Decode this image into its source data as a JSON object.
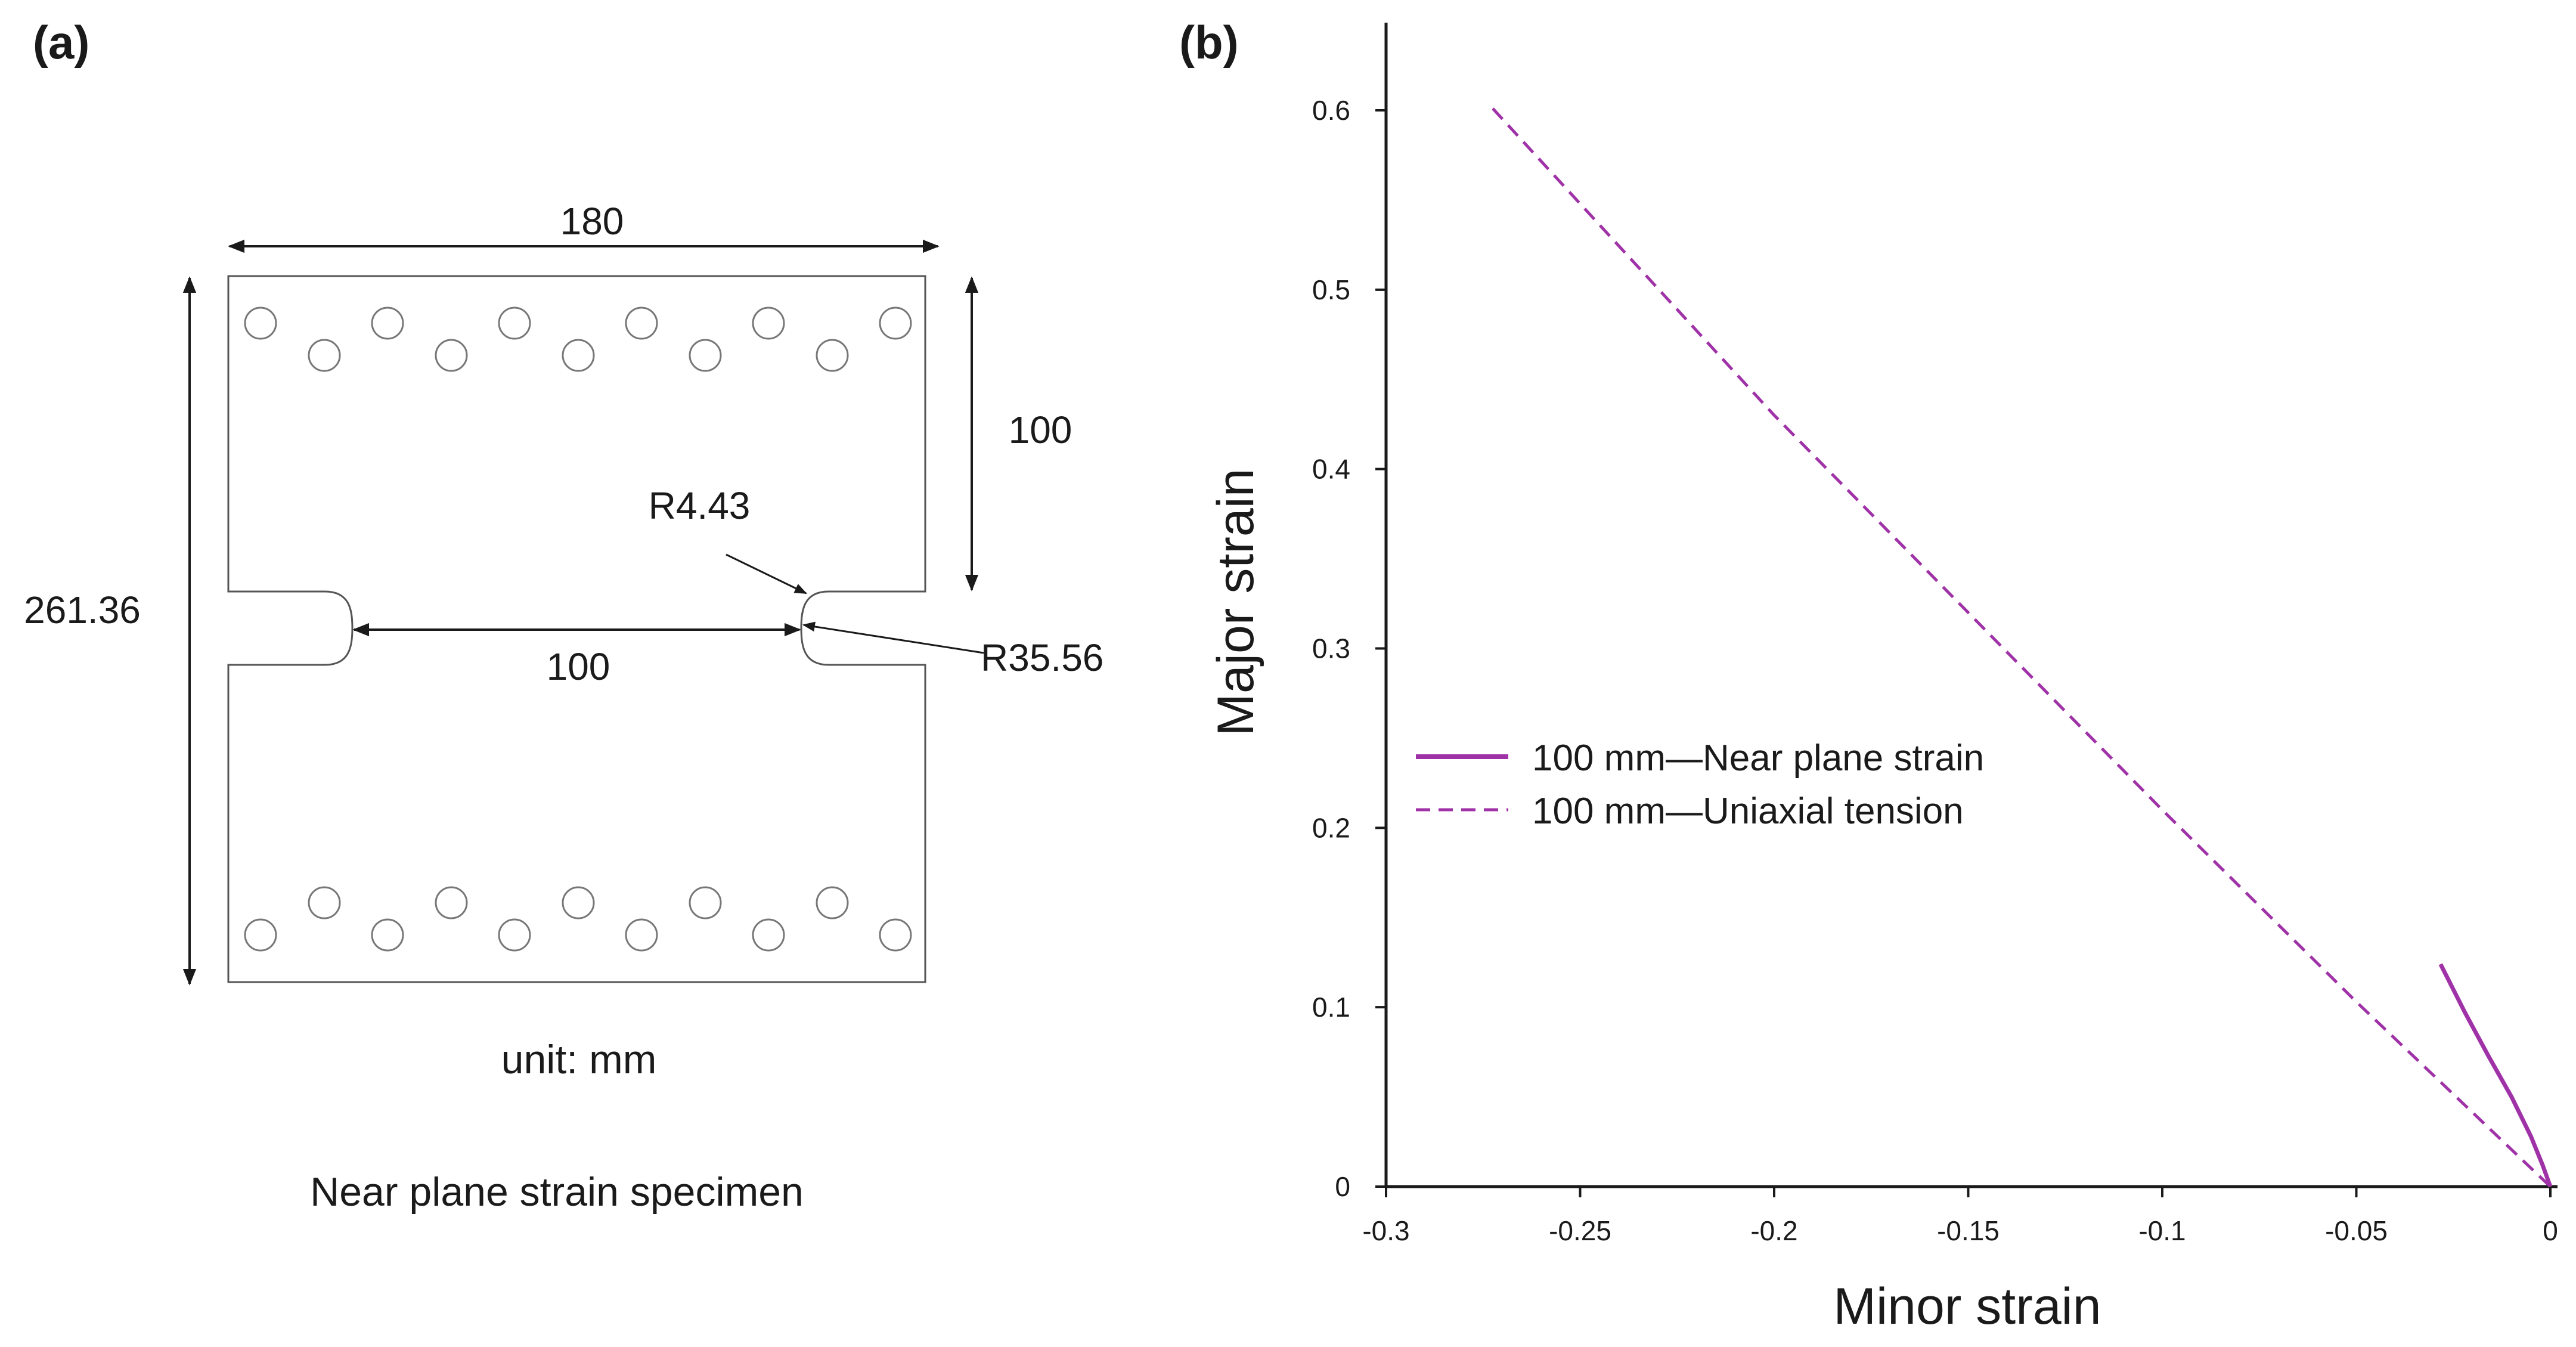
{
  "panel_a": {
    "label": "(a)",
    "dimensions": {
      "width_label": "180",
      "height_label": "261.36",
      "upper_label": "100",
      "gauge_label": "100",
      "radius_small_label": "R4.43",
      "radius_large_label": "R35.56"
    },
    "unit_label": "unit: mm",
    "caption": "Near plane strain specimen"
  },
  "panel_b": {
    "label": "(b)"
  },
  "colors": {
    "series": "#a032a8",
    "axis": "#1a1a1a",
    "outline": "#555555"
  },
  "chart_data": {
    "type": "line",
    "title": "",
    "xlabel": "Minor strain",
    "ylabel": "Major strain",
    "xlim": [
      -0.3,
      0
    ],
    "ylim": [
      0,
      0.65
    ],
    "x_ticks": [
      -0.3,
      -0.25,
      -0.2,
      -0.15,
      -0.1,
      -0.05,
      0
    ],
    "x_tick_labels": [
      "-0.3",
      "-0.25",
      "-0.2",
      "-0.15",
      "-0.1",
      "-0.05",
      "0"
    ],
    "y_ticks": [
      0,
      0.1,
      0.2,
      0.3,
      0.4,
      0.5,
      0.6
    ],
    "y_tick_labels": [
      "0",
      "0.1",
      "0.2",
      "0.3",
      "0.4",
      "0.5",
      "0.6"
    ],
    "grid": false,
    "legend_position": "middle-left",
    "series": [
      {
        "name": "100 mm—Near plane strain",
        "style": "solid",
        "x": [
          -0.0283,
          -0.022,
          -0.016,
          -0.01,
          -0.005,
          -0.002,
          0
        ],
        "y": [
          0.124,
          0.097,
          0.073,
          0.05,
          0.028,
          0.012,
          0
        ]
      },
      {
        "name": "100 mm—Uniaxial tension",
        "style": "dashed",
        "x": [
          -0.2725,
          -0.2,
          -0.1,
          -0.05,
          0
        ],
        "y": [
          0.601,
          0.43,
          0.21,
          0.103,
          0
        ]
      }
    ]
  }
}
